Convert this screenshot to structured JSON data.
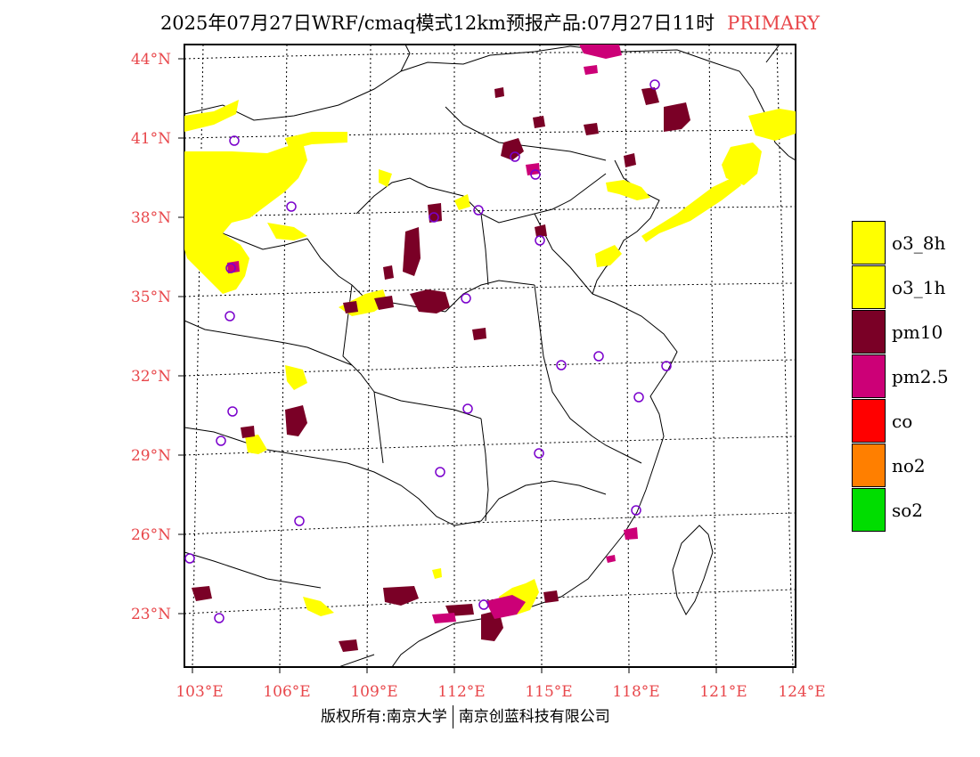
{
  "title": {
    "main": "2025年07月27日WRF/cmaq模式12km预报产品:07月27日11时",
    "tag": "PRIMARY"
  },
  "axes": {
    "lat_labels": [
      "44°N",
      "41°N",
      "38°N",
      "35°N",
      "32°N",
      "29°N",
      "26°N",
      "23°N"
    ],
    "lon_labels": [
      "103°E",
      "106°E",
      "109°E",
      "112°E",
      "115°E",
      "118°E",
      "121°E",
      "124°E"
    ]
  },
  "legend": [
    {
      "label": "o3_8h",
      "color": "#ffff00"
    },
    {
      "label": "o3_1h",
      "color": "#ffff00"
    },
    {
      "label": "pm10",
      "color": "#7a0026"
    },
    {
      "label": "pm2.5",
      "color": "#cc0077"
    },
    {
      "label": "co",
      "color": "#ff0000"
    },
    {
      "label": "no2",
      "color": "#ff7f00"
    },
    {
      "label": "so2",
      "color": "#00dd00"
    }
  ],
  "footer": {
    "left": "版权所有:南京大学",
    "right": "南京创蓝科技有限公司"
  }
}
